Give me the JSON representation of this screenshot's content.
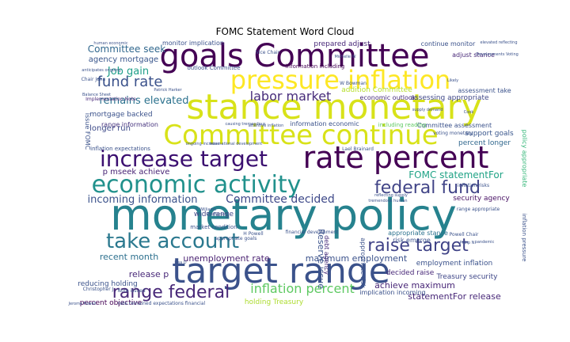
{
  "chart_data": {
    "type": "wordcloud",
    "title": "FOMC Statement Word Cloud",
    "background": "#ffffff",
    "colormap": "viridis",
    "words": [
      {
        "text": "monetary policy",
        "weight": 1.0,
        "color": "#26828e"
      },
      {
        "text": "target range",
        "weight": 0.85,
        "color": "#3b528b"
      },
      {
        "text": "goals Committee",
        "weight": 0.8,
        "color": "#440154"
      },
      {
        "text": "stance monetary",
        "weight": 0.8,
        "color": "#d8e219"
      },
      {
        "text": "pressure inflation",
        "weight": 0.75,
        "color": "#fde725"
      },
      {
        "text": "rate percent",
        "weight": 0.78,
        "color": "#440154"
      },
      {
        "text": "Committee continue",
        "weight": 0.74,
        "color": "#d8e219"
      },
      {
        "text": "increase target",
        "weight": 0.6,
        "color": "#3b0f70"
      },
      {
        "text": "economic activity",
        "weight": 0.62,
        "color": "#21918c"
      },
      {
        "text": "take account",
        "weight": 0.55,
        "color": "#2a788e"
      },
      {
        "text": "raise target",
        "weight": 0.48,
        "color": "#404387"
      },
      {
        "text": "federal fund",
        "weight": 0.46,
        "color": "#414487"
      },
      {
        "text": "range federal",
        "weight": 0.44,
        "color": "#482878"
      },
      {
        "text": "fund rate",
        "weight": 0.4,
        "color": "#3b528b"
      },
      {
        "text": "labor market",
        "weight": 0.34,
        "color": "#472c7a"
      },
      {
        "text": "inflation percent",
        "weight": 0.3,
        "color": "#5ec962"
      },
      {
        "text": "Committee decided",
        "weight": 0.3,
        "color": "#3e4989"
      },
      {
        "text": "incoming information",
        "weight": 0.28,
        "color": "#3b528b"
      },
      {
        "text": "remains elevated",
        "weight": 0.26,
        "color": "#2c728e"
      },
      {
        "text": "Job gain",
        "weight": 0.24,
        "color": "#1f9e89"
      },
      {
        "text": "Committee seek",
        "weight": 0.24,
        "color": "#31688e"
      },
      {
        "text": "FOMC statementFor",
        "weight": 0.24,
        "color": "#20a386"
      },
      {
        "text": "unemployment rate",
        "weight": 0.23,
        "color": "#481f70"
      },
      {
        "text": "recent month",
        "weight": 0.22,
        "color": "#2d708e"
      },
      {
        "text": "maximum employment",
        "weight": 0.22,
        "color": "#3b528b"
      },
      {
        "text": "Reserve issue",
        "weight": 0.22,
        "color": "#3b528b"
      },
      {
        "text": "achieve maximum",
        "weight": 0.22,
        "color": "#482677"
      },
      {
        "text": "statementFor release",
        "weight": 0.22,
        "color": "#482878"
      },
      {
        "text": "prepared adjust",
        "weight": 0.13,
        "color": "#482878"
      },
      {
        "text": "agency mortgage",
        "weight": 0.16,
        "color": "#39568c"
      },
      {
        "text": "longer run",
        "weight": 0.18,
        "color": "#3e4a89"
      },
      {
        "text": "mortgage backed",
        "weight": 0.16,
        "color": "#3b528b"
      },
      {
        "text": "p mseek achieve",
        "weight": 0.18,
        "color": "#482475"
      },
      {
        "text": "wide range",
        "weight": 0.17,
        "color": "#3f4788"
      },
      {
        "text": "release p",
        "weight": 0.2,
        "color": "#482878"
      },
      {
        "text": "reducing holding",
        "weight": 0.16,
        "color": "#3b528b"
      },
      {
        "text": "percent objective",
        "weight": 0.16,
        "color": "#440154"
      },
      {
        "text": "holding Treasury",
        "weight": 0.18,
        "color": "#addc30"
      },
      {
        "text": "Treasury security",
        "weight": 0.18,
        "color": "#3f4788"
      },
      {
        "text": "decided raise",
        "weight": 0.16,
        "color": "#482878"
      },
      {
        "text": "employment inflation",
        "weight": 0.16,
        "color": "#3b528b"
      },
      {
        "text": "security agency",
        "weight": 0.16,
        "color": "#471063"
      },
      {
        "text": "support goals",
        "weight": 0.16,
        "color": "#39568c"
      },
      {
        "text": "percent longer",
        "weight": 0.16,
        "color": "#31688e"
      },
      {
        "text": "Committee assessment",
        "weight": 0.12,
        "color": "#3b528b"
      },
      {
        "text": "appropriate stance",
        "weight": 0.14,
        "color": "#2c728e"
      },
      {
        "text": "assessing appropriate",
        "weight": 0.13,
        "color": "#3f4788"
      },
      {
        "text": "addition Committee",
        "weight": 0.14,
        "color": "#b5de2b"
      },
      {
        "text": "economic outlook",
        "weight": 0.13,
        "color": "#472d7b"
      },
      {
        "text": "information economic",
        "weight": 0.13,
        "color": "#3b528b"
      },
      {
        "text": "range information",
        "weight": 0.12,
        "color": "#46337e"
      },
      {
        "text": "monitor implication",
        "weight": 0.12,
        "color": "#3b528b"
      },
      {
        "text": "continue monitor",
        "weight": 0.12,
        "color": "#3b528b"
      },
      {
        "text": "adjust stance",
        "weight": 0.12,
        "color": "#482878"
      },
      {
        "text": "assessment take",
        "weight": 0.12,
        "color": "#3b528b"
      },
      {
        "text": "policy appropriate",
        "weight": 0.12,
        "color": "#35b779"
      },
      {
        "text": "appropriate risk",
        "weight": 0.12,
        "color": "#3b528b"
      },
      {
        "text": "debt agency",
        "weight": 0.12,
        "color": "#472c7a"
      },
      {
        "text": "risk emerge",
        "weight": 0.12,
        "color": "#3b528b"
      },
      {
        "text": "implication incoming",
        "weight": 0.12,
        "color": "#3b528b"
      },
      {
        "text": "inflation pressure",
        "weight": 0.11,
        "color": "#3b528b"
      },
      {
        "text": "issue FOMC",
        "weight": 0.12,
        "color": "#3b528b"
      },
      {
        "text": "Implementation Note",
        "weight": 0.08,
        "color": "#482878"
      },
      {
        "text": "inflation expectations",
        "weight": 0.09,
        "color": "#3b528b"
      },
      {
        "text": "information including",
        "weight": 0.1,
        "color": "#440154"
      },
      {
        "text": "including reading",
        "weight": 0.1,
        "color": "#5ec962"
      },
      {
        "text": "voting monetary",
        "weight": 0.08,
        "color": "#3b528b"
      },
      {
        "text": "outlook Committee",
        "weight": 0.1,
        "color": "#3b528b"
      },
      {
        "text": "market condition",
        "weight": 0.1,
        "color": "#3b528b"
      },
      {
        "text": "financial development",
        "weight": 0.08,
        "color": "#3b528b"
      },
      {
        "text": "international development",
        "weight": 0.07,
        "color": "#3b528b"
      },
      {
        "text": "anticipates ongoing",
        "weight": 0.07,
        "color": "#3b528b"
      },
      {
        "text": "ongoing increase",
        "weight": 0.07,
        "color": "#3b528b"
      },
      {
        "text": "appropriate goals",
        "weight": 0.08,
        "color": "#3b528b"
      },
      {
        "text": "inflation risks",
        "weight": 0.08,
        "color": "#3b528b"
      },
      {
        "text": "range appropriate",
        "weight": 0.07,
        "color": "#3b528b"
      },
      {
        "text": "rate remained expectations financial",
        "weight": 0.07,
        "color": "#3b528b"
      },
      {
        "text": "causing tremendous",
        "weight": 0.07,
        "color": "#3b528b"
      },
      {
        "text": "tremendous human",
        "weight": 0.06,
        "color": "#3b528b"
      },
      {
        "text": "human economic",
        "weight": 0.06,
        "color": "#3b528b"
      },
      {
        "text": "elevated reflecting",
        "weight": 0.06,
        "color": "#3b528b"
      },
      {
        "text": "Lael Brainard",
        "weight": 0.07,
        "color": "#3b528b"
      },
      {
        "text": "Jerome Powell",
        "weight": 0.06,
        "color": "#3b528b"
      },
      {
        "text": "Powell Chair",
        "weight": 0.07,
        "color": "#3b528b"
      },
      {
        "text": "Chair John",
        "weight": 0.07,
        "color": "#3b528b"
      },
      {
        "text": "Christopher J",
        "weight": 0.07,
        "color": "#3b528b"
      },
      {
        "text": "Michelle W",
        "weight": 0.06,
        "color": "#3b528b"
      },
      {
        "text": "W Bowman",
        "weight": 0.07,
        "color": "#3b528b"
      },
      {
        "text": "H Powell",
        "weight": 0.07,
        "color": "#3b528b"
      },
      {
        "text": "Note issued",
        "weight": 0.07,
        "color": "#3b528b"
      },
      {
        "text": "Balance Sheet",
        "weight": 0.06,
        "color": "#3b528b"
      },
      {
        "text": "Patrick Harker",
        "weight": 0.06,
        "color": "#3b528b"
      },
      {
        "text": "C Williams",
        "weight": 0.06,
        "color": "#3b528b"
      },
      {
        "text": "P Jefferson",
        "weight": 0.06,
        "color": "#3b528b"
      },
      {
        "text": "Vice Chair",
        "weight": 0.07,
        "color": "#3b528b"
      },
      {
        "text": "Philip N",
        "weight": 0.06,
        "color": "#3b528b"
      },
      {
        "text": "Lisa D",
        "weight": 0.06,
        "color": "#3b528b"
      },
      {
        "text": "Developments Voting",
        "weight": 0.06,
        "color": "#3b528b"
      },
      {
        "text": "attentive inflation",
        "weight": 0.06,
        "color": "#3b528b"
      },
      {
        "text": "reflecting supply",
        "weight": 0.06,
        "color": "#3b528b"
      },
      {
        "text": "supply demand",
        "weight": 0.06,
        "color": "#3b528b"
      },
      {
        "text": "pandemic",
        "weight": 0.06,
        "color": "#3b528b"
      },
      {
        "text": "Likely",
        "weight": 0.06,
        "color": "#3b528b"
      },
      {
        "text": "Cook",
        "weight": 0.06,
        "color": "#3b528b"
      }
    ]
  }
}
